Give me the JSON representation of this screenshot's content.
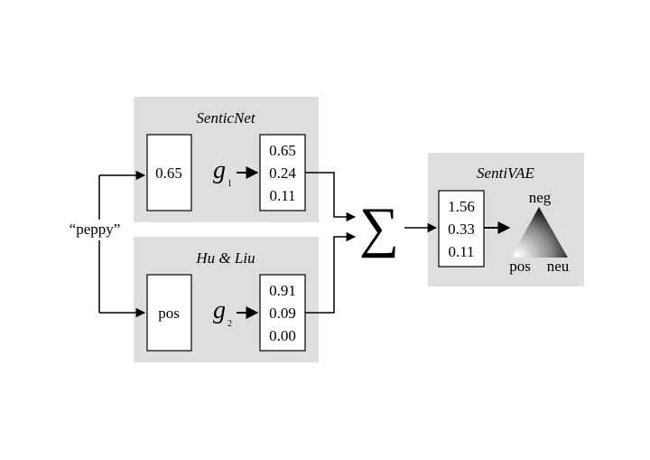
{
  "diagram": {
    "input_word": "“peppy”",
    "senticnet": {
      "title": "SenticNet",
      "input_value": "0.65",
      "function_name": "g",
      "function_subscript": "1",
      "outputs": [
        "0.65",
        "0.24",
        "0.11"
      ]
    },
    "huliu": {
      "title": "Hu & Liu",
      "input_value": "pos",
      "function_name": "g",
      "function_subscript": "2",
      "outputs": [
        "0.91",
        "0.09",
        "0.00"
      ]
    },
    "sum_symbol": "∑",
    "sentivae": {
      "title": "SentiVAE",
      "outputs": [
        "1.56",
        "0.33",
        "0.11"
      ],
      "simplex_labels": {
        "top": "neg",
        "left": "pos",
        "right": "neu"
      }
    },
    "colors": {
      "panel": "#dedede",
      "box_border": "#000000",
      "box_fill": "#ffffff"
    }
  }
}
